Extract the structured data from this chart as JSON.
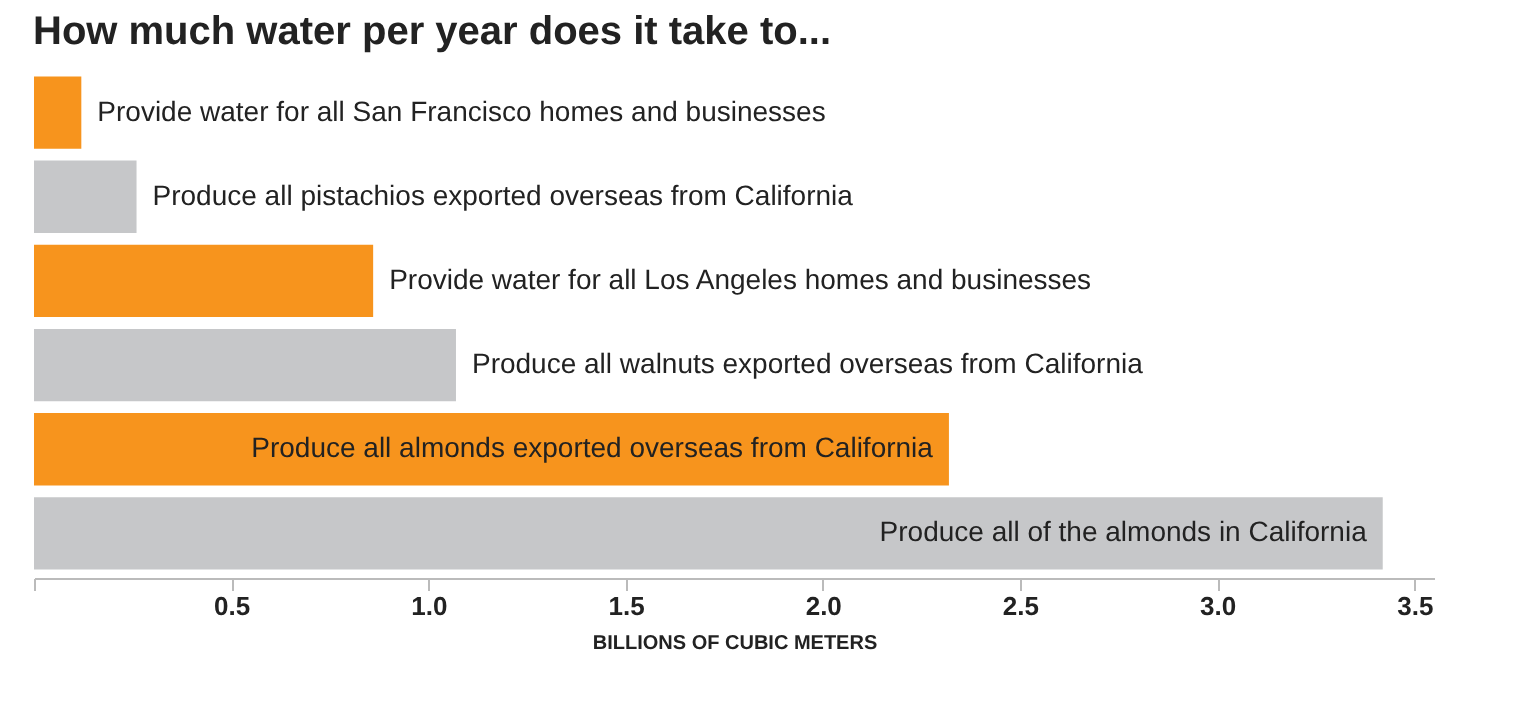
{
  "chart_data": {
    "type": "bar",
    "orientation": "horizontal",
    "title": "How much water per year does it take to...",
    "categories": [
      "Provide water for all San Francisco homes and businesses",
      "Produce all pistachios exported overseas from California",
      "Provide water for all Los Angeles homes and businesses",
      "Produce all walnuts exported overseas from California",
      "Produce all almonds exported overseas from California",
      "Produce all of the almonds in California"
    ],
    "values": [
      0.12,
      0.26,
      0.86,
      1.07,
      2.32,
      3.42
    ],
    "colors": [
      "#f7941d",
      "#c6c7c9",
      "#f7941d",
      "#c6c7c9",
      "#f7941d",
      "#c6c7c9"
    ],
    "xlabel": "BILLIONS OF CUBIC METERS",
    "xlim": [
      0,
      3.55
    ],
    "xticks": [
      {
        "value": 0,
        "label": null
      },
      0.5,
      {
        "value": 1,
        "label": "1.0"
      },
      1.5,
      {
        "value": 2,
        "label": "2.0"
      },
      2.5,
      {
        "value": 3,
        "label": "3.0"
      },
      3.5
    ],
    "tick_labels": "x",
    "grid": false
  }
}
